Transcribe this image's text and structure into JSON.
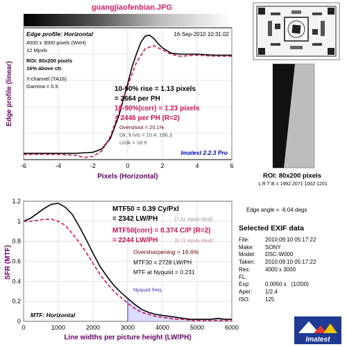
{
  "header": {
    "filename": "guangjiaofenbian.JPG"
  },
  "edge_panel": {
    "title": "Edge profile: Horizontal",
    "timestamp": "16-Sep-2010 10:31:02",
    "info_lines": [
      "4000 x 3000 pixels (WxH)",
      "12 Mpxls"
    ],
    "roi_lines": [
      "ROI: 80x200 pixels",
      "16% above ctr."
    ],
    "channel_lines": [
      "Y-channel  (YA16)",
      "Gamma = 0.5"
    ],
    "rise_lines": [
      "10-90% rise = 1.13 pixels",
      "= 2664 per PH"
    ],
    "corr_lines": [
      "10-90%(corr) = 1.23 pixels",
      "= 2446 per PH  (R=2)"
    ],
    "stats_lines": [
      "Overshoot = 20.1%",
      "Dk, lt lvls = 10.4, 196.3",
      "Lt/dk = 18.9"
    ],
    "brand": "Imatest 2.2.3 Pro",
    "ylabel": "Edge profile (linear)",
    "xlabel": "Pixels (Horizontal)"
  },
  "mtf_panel": {
    "title": "MTF: Horizontal",
    "mtf50_line1": "MTF50 = 0.39 Cy/Pxl",
    "mtf50_line2": "= 2342 LW/PH",
    "mtf50_ideal": "[7.31 mpxls ideal]",
    "corr_line1": "MTF50(corr) = 0.374 C/P  (R=2)",
    "corr_line2": "= 2244 LW/PH",
    "corr_ideal": "[6.71 mpxls ideal]",
    "oversharpening": "Oversharpening = 16.6%",
    "mtf30": "MTF30 = 2728 LW/PH",
    "mtf_nyquist": "MTF at Nyquist = 0.231",
    "nyquist_label": "Nyquist freq.",
    "ylabel": "SFR (MTF)",
    "xlabel": "Line widths per picture height (LW/PH)"
  },
  "roi_panel": {
    "title": "ROI: 80x200 pixels",
    "lrtb": "L R T B = 1992 2071   1002 1201",
    "edge_angle": "Edge angle = -6.04 degs"
  },
  "exif": {
    "title": "Selected EXIF data",
    "rows": [
      {
        "label": "File:",
        "value": "2010:09:10 05:17:22"
      },
      {
        "label": "Make:",
        "value": "SONY"
      },
      {
        "label": "Model:",
        "value": "DSC-W000"
      },
      {
        "label": "Taken:",
        "value": "2010:09:10 05:17:22"
      },
      {
        "label": "Res:",
        "value": "4000 x 3000"
      },
      {
        "label": "FL:",
        "value": ""
      },
      {
        "label": "Exp:",
        "value": "0.0050 s   (1/200)"
      },
      {
        "label": "Aper:",
        "value": "1/2.4"
      },
      {
        "label": "ISO:",
        "value": "125"
      }
    ]
  },
  "logo": {
    "text": "Imatest"
  },
  "colors": {
    "black_curve": "#000000",
    "red_curve": "#cc1155",
    "title_red": "#cc2266",
    "purple_label": "#660066",
    "brand_blue": "#0000bb",
    "nyquist_fill": "#ccccff"
  },
  "chart_data": [
    {
      "type": "line",
      "title": "Edge profile: Horizontal",
      "xlabel": "Pixels (Horizontal)",
      "ylabel": "Edge profile (linear)",
      "xlim": [
        -6,
        6
      ],
      "ylim": [
        0,
        1.25
      ],
      "xticks": [
        -6,
        -4,
        -2,
        0,
        2,
        4,
        6
      ],
      "grid": true,
      "series": [
        {
          "x": [
            -6,
            -5,
            -4,
            -3,
            -2,
            -1.5,
            -1,
            -0.5,
            0,
            0.25,
            0.5,
            0.75,
            1,
            1.25,
            1.5,
            1.75,
            2,
            2.5,
            3,
            4,
            5,
            6
          ],
          "values": [
            0.06,
            0.06,
            0.06,
            0.06,
            0.07,
            0.1,
            0.2,
            0.42,
            0.72,
            0.88,
            1.0,
            1.11,
            1.17,
            1.18,
            1.15,
            1.1,
            1.06,
            1.01,
            1.0,
            1.0,
            0.99,
            0.99
          ]
        },
        {
          "x": [
            -6,
            -5,
            -4,
            -3,
            -2.5,
            -2,
            -1.5,
            -1,
            -0.5,
            0,
            0.5,
            1,
            1.5,
            2,
            2.5,
            3,
            4,
            5,
            6
          ],
          "values": [
            0.05,
            0.05,
            0.05,
            0.04,
            0.02,
            0.03,
            0.08,
            0.22,
            0.45,
            0.7,
            0.92,
            1.05,
            1.08,
            1.04,
            1.0,
            0.98,
            0.99,
            0.98,
            0.98
          ]
        }
      ]
    },
    {
      "type": "line",
      "title": "MTF: Horizontal",
      "xlabel": "Line widths per picture height (LW/PH)",
      "ylabel": "SFR (MTF)",
      "xlim": [
        0,
        6000
      ],
      "ylim": [
        0,
        1.2
      ],
      "xticks": [
        0,
        1000,
        2000,
        3000,
        4000,
        5000,
        6000
      ],
      "yticks": [
        0,
        0.2,
        0.4,
        0.6,
        0.8,
        1,
        1.2
      ],
      "grid": true,
      "nyquist_x": 3000,
      "series": [
        {
          "x": [
            0,
            200,
            400,
            600,
            800,
            1000,
            1200,
            1400,
            1600,
            1800,
            2000,
            2200,
            2400,
            2600,
            2800,
            3000,
            3200,
            3400,
            3600,
            3800,
            4000,
            4200,
            4400,
            4600,
            4800,
            5000,
            5200,
            5400,
            5600,
            5800,
            6000
          ],
          "values": [
            1.0,
            1.03,
            1.08,
            1.13,
            1.17,
            1.18,
            1.14,
            1.07,
            0.95,
            0.82,
            0.68,
            0.55,
            0.45,
            0.36,
            0.29,
            0.23,
            0.17,
            0.12,
            0.09,
            0.07,
            0.06,
            0.05,
            0.04,
            0.03,
            0.02,
            0.02,
            0.02,
            0.02,
            0.03,
            0.02,
            0.02
          ]
        },
        {
          "x": [
            0,
            200,
            400,
            600,
            800,
            1000,
            1200,
            1400,
            1600,
            1800,
            2000,
            2200,
            2400,
            2600,
            2800,
            3000,
            3200,
            3400,
            3600,
            3800,
            4000,
            4200,
            4400,
            4600,
            4800,
            5000,
            5200,
            5400,
            5600,
            5800,
            6000
          ],
          "values": [
            1.0,
            1.0,
            1.01,
            1.02,
            1.02,
            1.0,
            0.96,
            0.88,
            0.79,
            0.69,
            0.58,
            0.47,
            0.38,
            0.3,
            0.24,
            0.18,
            0.13,
            0.09,
            0.07,
            0.05,
            0.04,
            0.03,
            0.02,
            0.02,
            0.01,
            0.01,
            0.01,
            0.01,
            0.01,
            0.01,
            0.01
          ]
        }
      ]
    }
  ]
}
